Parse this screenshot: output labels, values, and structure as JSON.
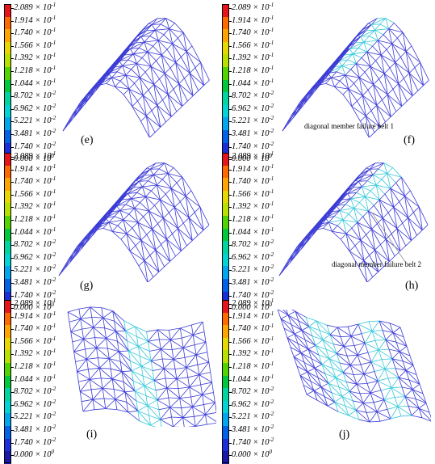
{
  "legend": {
    "entries": [
      {
        "mant": "2.089",
        "exp": "-1",
        "color": "#e8141b"
      },
      {
        "mant": "1.914",
        "exp": "-1",
        "color": "#ff6a00"
      },
      {
        "mant": "1.740",
        "exp": "-1",
        "color": "#ffa500"
      },
      {
        "mant": "1.566",
        "exp": "-1",
        "color": "#e6d800"
      },
      {
        "mant": "1.392",
        "exp": "-1",
        "color": "#b8e000"
      },
      {
        "mant": "1.218",
        "exp": "-1",
        "color": "#52d400"
      },
      {
        "mant": "1.044",
        "exp": "-1",
        "color": "#00c83a"
      },
      {
        "mant": "8.702",
        "exp": "-2",
        "color": "#00d4a0"
      },
      {
        "mant": "6.962",
        "exp": "-2",
        "color": "#00d4d4"
      },
      {
        "mant": "5.221",
        "exp": "-2",
        "color": "#00a6ee"
      },
      {
        "mant": "3.481",
        "exp": "-2",
        "color": "#0062e6"
      },
      {
        "mant": "1.740",
        "exp": "-2",
        "color": "#1a2fd8"
      },
      {
        "mant": "0.000",
        "exp": "0",
        "color": "#1a1aa8"
      }
    ],
    "times": "×",
    "base": "10"
  },
  "panels": [
    {
      "id": "e",
      "caption": "(e)",
      "note": ""
    },
    {
      "id": "f",
      "caption": "(f)",
      "note": "diagonal member failure  belt 1"
    },
    {
      "id": "g",
      "caption": "(g)",
      "note": ""
    },
    {
      "id": "h",
      "caption": "(h)",
      "note": "diagonal member failure  belt 2"
    },
    {
      "id": "i",
      "caption": "(i)",
      "note": ""
    },
    {
      "id": "j",
      "caption": "(j)",
      "note": ""
    }
  ],
  "colors": {
    "mesh": "#3b3bd6",
    "highlight": "#35c8d8"
  }
}
